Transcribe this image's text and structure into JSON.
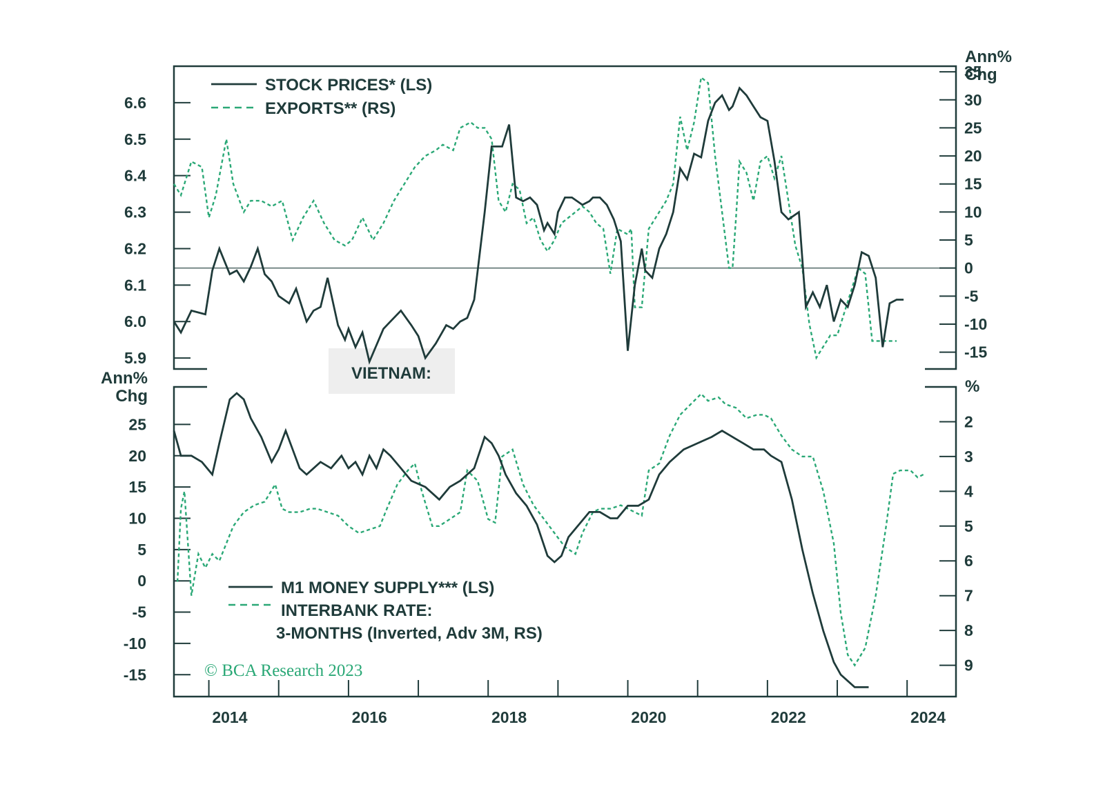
{
  "colors": {
    "solid": "#1f3b3a",
    "dashed": "#2aa876",
    "frame": "#1f3b3a",
    "title_bg": "#eeeeee"
  },
  "chart_data": [
    {
      "type": "line",
      "title": "VIETNAM:",
      "panel": "top",
      "left_axis": {
        "label": "",
        "ticks": [
          "6.6",
          "6.5",
          "6.4",
          "6.3",
          "6.2",
          "6.1",
          "6.0",
          "5.9"
        ],
        "range": [
          5.87,
          6.7
        ]
      },
      "right_axis": {
        "label": [
          "Ann%",
          "Chg"
        ],
        "ticks": [
          "35",
          "30",
          "25",
          "20",
          "15",
          "10",
          "5",
          "0",
          "-5",
          "-10",
          "-15"
        ],
        "range": [
          -18,
          36
        ]
      },
      "series": [
        {
          "name": "STOCK PRICES* (LS)",
          "axis": "left",
          "style": "solid",
          "x": [
            2013.5,
            2013.6,
            2013.75,
            2013.95,
            2014.05,
            2014.15,
            2014.3,
            2014.4,
            2014.5,
            2014.6,
            2014.7,
            2014.8,
            2014.9,
            2015.0,
            2015.15,
            2015.25,
            2015.4,
            2015.5,
            2015.6,
            2015.7,
            2015.85,
            2015.95,
            2016.0,
            2016.1,
            2016.2,
            2016.3,
            2016.5,
            2016.6,
            2016.75,
            2016.9,
            2017.0,
            2017.1,
            2017.25,
            2017.4,
            2017.5,
            2017.6,
            2017.7,
            2017.8,
            2017.95,
            2018.05,
            2018.2,
            2018.3,
            2018.4,
            2018.5,
            2018.6,
            2018.7,
            2018.8,
            2018.85,
            2018.95,
            2019.0,
            2019.1,
            2019.2,
            2019.35,
            2019.45,
            2019.5,
            2019.6,
            2019.7,
            2019.8,
            2019.9,
            2020.0,
            2020.1,
            2020.2,
            2020.25,
            2020.35,
            2020.45,
            2020.55,
            2020.65,
            2020.75,
            2020.85,
            2020.95,
            2021.05,
            2021.15,
            2021.25,
            2021.35,
            2021.45,
            2021.5,
            2021.6,
            2021.7,
            2021.8,
            2021.9,
            2022.0,
            2022.1,
            2022.2,
            2022.3,
            2022.45,
            2022.55,
            2022.65,
            2022.75,
            2022.85,
            2022.95,
            2023.05,
            2023.15,
            2023.25,
            2023.35,
            2023.45,
            2023.55,
            2023.65,
            2023.75,
            2023.85,
            2023.95
          ],
          "values": [
            6.0,
            5.97,
            6.03,
            6.02,
            6.14,
            6.2,
            6.13,
            6.14,
            6.11,
            6.15,
            6.2,
            6.13,
            6.11,
            6.07,
            6.05,
            6.09,
            6.0,
            6.03,
            6.04,
            6.12,
            5.99,
            5.95,
            5.98,
            5.93,
            5.97,
            5.89,
            5.98,
            6.0,
            6.03,
            5.99,
            5.96,
            5.9,
            5.94,
            5.99,
            5.98,
            6.0,
            6.01,
            6.06,
            6.3,
            6.48,
            6.48,
            6.54,
            6.34,
            6.33,
            6.34,
            6.32,
            6.25,
            6.27,
            6.24,
            6.3,
            6.34,
            6.34,
            6.32,
            6.33,
            6.34,
            6.34,
            6.32,
            6.28,
            6.22,
            5.92,
            6.1,
            6.2,
            6.14,
            6.12,
            6.2,
            6.24,
            6.3,
            6.42,
            6.39,
            6.46,
            6.45,
            6.55,
            6.6,
            6.62,
            6.58,
            6.59,
            6.64,
            6.62,
            6.59,
            6.56,
            6.55,
            6.44,
            6.3,
            6.28,
            6.3,
            6.04,
            6.08,
            6.04,
            6.1,
            6.0,
            6.06,
            6.04,
            6.1,
            6.19,
            6.18,
            6.12,
            5.93,
            6.05,
            6.06,
            6.06
          ]
        },
        {
          "name": "EXPORTS** (RS)",
          "axis": "right",
          "style": "dashed",
          "x": [
            2013.5,
            2013.6,
            2013.75,
            2013.9,
            2014.0,
            2014.1,
            2014.25,
            2014.35,
            2014.5,
            2014.6,
            2014.75,
            2014.9,
            2015.05,
            2015.2,
            2015.35,
            2015.5,
            2015.65,
            2015.8,
            2015.95,
            2016.05,
            2016.2,
            2016.35,
            2016.5,
            2016.65,
            2016.8,
            2016.95,
            2017.1,
            2017.25,
            2017.35,
            2017.5,
            2017.6,
            2017.75,
            2017.85,
            2017.95,
            2018.05,
            2018.15,
            2018.25,
            2018.35,
            2018.45,
            2018.55,
            2018.65,
            2018.75,
            2018.85,
            2018.95,
            2019.05,
            2019.15,
            2019.25,
            2019.35,
            2019.45,
            2019.55,
            2019.65,
            2019.75,
            2019.85,
            2020.0,
            2020.05,
            2020.1,
            2020.2,
            2020.3,
            2020.45,
            2020.55,
            2020.65,
            2020.75,
            2020.85,
            2020.95,
            2021.05,
            2021.15,
            2021.25,
            2021.35,
            2021.45,
            2021.5,
            2021.55,
            2021.6,
            2021.7,
            2021.8,
            2021.9,
            2022.0,
            2022.1,
            2022.2,
            2022.3,
            2022.4,
            2022.5,
            2022.6,
            2022.7,
            2022.8,
            2022.9,
            2023.0,
            2023.1,
            2023.2,
            2023.3,
            2023.4,
            2023.5,
            2023.6,
            2023.7,
            2023.75,
            2023.85
          ],
          "values": [
            15,
            13,
            19,
            18,
            9,
            13,
            23,
            15,
            10,
            12,
            12,
            11,
            12,
            5,
            9,
            12,
            8,
            5,
            4,
            5,
            9,
            5,
            8,
            12,
            15,
            18,
            20,
            21,
            22,
            21,
            25,
            26,
            25,
            25,
            23,
            12,
            10,
            15,
            14,
            8,
            9,
            5,
            3,
            5,
            8,
            9,
            10,
            11,
            10,
            8,
            7,
            -1,
            7,
            6,
            7,
            -7,
            -7,
            7,
            10,
            12,
            15,
            27,
            21,
            26,
            34,
            33,
            20,
            10,
            0,
            0,
            9,
            19,
            17,
            12,
            19,
            20,
            16,
            20,
            12,
            4,
            0,
            -10,
            -16,
            -14,
            -12,
            -12,
            -8,
            -4,
            0,
            -1,
            -13,
            -13,
            -13,
            -13,
            -13
          ],
          "note": "dashed series ends near 2023.8"
        }
      ]
    },
    {
      "type": "line",
      "panel": "bottom",
      "left_axis": {
        "label": [
          "Ann%",
          "Chg"
        ],
        "ticks": [
          "25",
          "20",
          "15",
          "10",
          "5",
          "0",
          "-5",
          "-10",
          "-15"
        ],
        "range": [
          -18.5,
          31
        ]
      },
      "right_axis": {
        "label": "%",
        "ticks": [
          "2",
          "3",
          "4",
          "5",
          "6",
          "7",
          "8",
          "9"
        ],
        "range": [
          1.0,
          9.9
        ],
        "inverted": true
      },
      "series": [
        {
          "name": "M1 MONEY SUPPLY*** (LS)",
          "axis": "left",
          "style": "solid",
          "x": [
            2013.5,
            2013.6,
            2013.75,
            2013.9,
            2014.05,
            2014.15,
            2014.3,
            2014.4,
            2014.5,
            2014.6,
            2014.75,
            2014.9,
            2015.0,
            2015.1,
            2015.2,
            2015.3,
            2015.4,
            2015.5,
            2015.6,
            2015.75,
            2015.9,
            2016.0,
            2016.1,
            2016.2,
            2016.3,
            2016.4,
            2016.5,
            2016.6,
            2016.75,
            2016.9,
            2017.1,
            2017.3,
            2017.45,
            2017.6,
            2017.7,
            2017.8,
            2017.95,
            2018.05,
            2018.15,
            2018.25,
            2018.4,
            2018.55,
            2018.7,
            2018.85,
            2018.95,
            2019.05,
            2019.15,
            2019.3,
            2019.45,
            2019.6,
            2019.75,
            2019.85,
            2020.0,
            2020.15,
            2020.3,
            2020.45,
            2020.6,
            2020.8,
            2021.0,
            2021.2,
            2021.35,
            2021.5,
            2021.65,
            2021.8,
            2021.95,
            2022.05,
            2022.2,
            2022.35,
            2022.5,
            2022.65,
            2022.8,
            2022.95,
            2023.05,
            2023.15,
            2023.25,
            2023.35,
            2023.45
          ],
          "values": [
            24,
            20,
            20,
            19,
            17,
            22,
            29,
            30,
            29,
            26,
            23,
            19,
            21,
            24,
            21,
            18,
            17,
            18,
            19,
            18,
            20,
            18,
            19,
            17,
            20,
            18,
            21,
            20,
            18,
            16,
            15,
            13,
            15,
            16,
            17,
            18,
            23,
            22,
            20,
            17,
            14,
            12,
            9,
            4,
            3,
            4,
            7,
            9,
            11,
            11,
            10,
            10,
            12,
            12,
            13,
            17,
            19,
            21,
            22,
            23,
            24,
            23,
            22,
            21,
            21,
            20,
            19,
            13,
            5,
            -2,
            -8,
            -13,
            -15,
            -16,
            -17,
            -17,
            -17
          ]
        },
        {
          "name": "INTERBANK RATE:",
          "name2": "3-MONTHS (Inverted, Adv 3M, RS)",
          "axis": "right",
          "style": "dashed",
          "x": [
            2013.55,
            2013.6,
            2013.65,
            2013.75,
            2013.85,
            2013.95,
            2014.05,
            2014.15,
            2014.25,
            2014.35,
            2014.5,
            2014.65,
            2014.8,
            2014.95,
            2015.05,
            2015.15,
            2015.3,
            2015.45,
            2015.55,
            2015.7,
            2015.85,
            2016.0,
            2016.15,
            2016.3,
            2016.45,
            2016.55,
            2016.7,
            2016.85,
            2016.95,
            2017.05,
            2017.2,
            2017.3,
            2017.45,
            2017.6,
            2017.7,
            2017.85,
            2018.0,
            2018.1,
            2018.2,
            2018.35,
            2018.5,
            2018.65,
            2018.8,
            2018.95,
            2019.1,
            2019.25,
            2019.35,
            2019.5,
            2019.6,
            2019.75,
            2019.9,
            2020.0,
            2020.1,
            2020.2,
            2020.3,
            2020.45,
            2020.6,
            2020.75,
            2020.9,
            2021.05,
            2021.15,
            2021.3,
            2021.4,
            2021.55,
            2021.7,
            2021.85,
            2021.95,
            2022.05,
            2022.2,
            2022.35,
            2022.5,
            2022.65,
            2022.8,
            2022.95,
            2023.05,
            2023.15,
            2023.25,
            2023.4,
            2023.55,
            2023.7,
            2023.8,
            2023.9,
            2024.05,
            2024.15,
            2024.25
          ],
          "values": [
            6.6,
            4.5,
            4.0,
            7.0,
            5.8,
            6.2,
            5.8,
            6.0,
            5.5,
            5.0,
            4.6,
            4.4,
            4.3,
            3.8,
            4.5,
            4.6,
            4.6,
            4.5,
            4.5,
            4.6,
            4.7,
            5.0,
            5.2,
            5.1,
            5.0,
            4.5,
            3.8,
            3.4,
            3.2,
            4.0,
            5.0,
            5.0,
            4.8,
            4.6,
            3.4,
            3.7,
            4.8,
            4.9,
            3.0,
            2.8,
            3.8,
            4.4,
            4.8,
            5.2,
            5.6,
            5.8,
            5.2,
            4.6,
            4.5,
            4.5,
            4.4,
            4.5,
            4.6,
            4.7,
            3.4,
            3.2,
            2.4,
            1.8,
            1.5,
            1.2,
            1.4,
            1.3,
            1.5,
            1.6,
            1.9,
            1.8,
            1.8,
            1.9,
            2.4,
            2.8,
            3.0,
            3.0,
            4.0,
            5.5,
            7.5,
            8.7,
            9.0,
            8.5,
            7.0,
            5.0,
            3.5,
            3.4,
            3.4,
            3.6,
            3.5
          ],
          "note": "dashed series"
        }
      ]
    }
  ],
  "x_axis": {
    "ticks": [
      "2014",
      "2016",
      "2018",
      "2020",
      "2022",
      "2024"
    ],
    "range": [
      2013.5,
      2024.7
    ]
  },
  "watermark": "© BCA Research 2023"
}
